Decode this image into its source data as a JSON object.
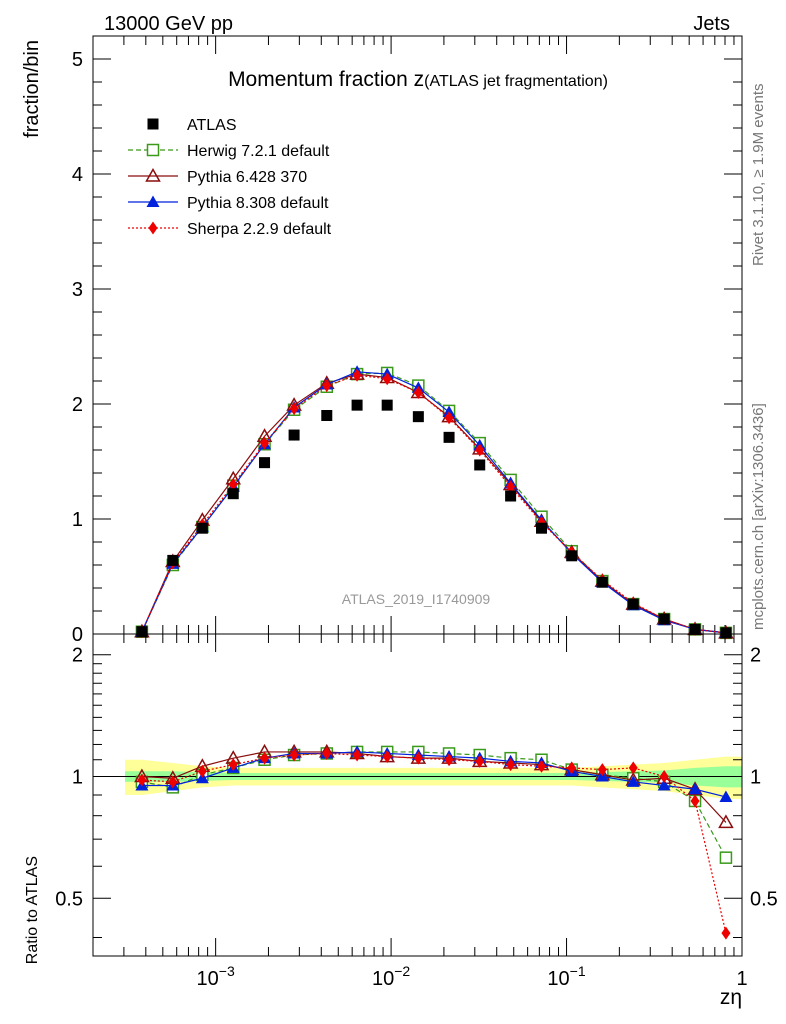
{
  "header": {
    "energy_label": "13000 GeV pp",
    "category_label": "Jets"
  },
  "side_labels": {
    "rivet": "Rivet 3.1.10, ≥ 1.9M events",
    "source": "mcplots.cern.ch [arXiv:1306.3436]"
  },
  "watermark": "ATLAS_2019_I1740909",
  "colors": {
    "atlas": "#000000",
    "herwig": "#3a9a1a",
    "pythia6": "#8b0d0d",
    "pythia8": "#0022dd",
    "sherpa": "#ee0000",
    "band_yellow": "#ffff99",
    "band_green": "#99ff99"
  },
  "chart_data": [
    {
      "type": "line",
      "title_main": "Momentum fraction ",
      "title_var": "z",
      "title_sub": "(ATLAS jet fragmentation)",
      "ylabel": "fraction/bin",
      "xscale": "log",
      "xlim": [
        0.0002,
        1
      ],
      "ylim": [
        0,
        5.2
      ],
      "yticks": [
        "0",
        "1",
        "2",
        "3",
        "4",
        "5"
      ],
      "x": [
        0.00038,
        0.00057,
        0.00084,
        0.00126,
        0.0019,
        0.0028,
        0.0043,
        0.0064,
        0.0095,
        0.0143,
        0.0214,
        0.032,
        0.048,
        0.072,
        0.107,
        0.16,
        0.24,
        0.36,
        0.54,
        0.81
      ],
      "legend": [
        "ATLAS",
        "Herwig 7.2.1 default",
        "Pythia 6.428 370",
        "Pythia 8.308 default",
        "Sherpa 2.2.9 default"
      ],
      "series": [
        {
          "name": "ATLAS",
          "key": "atlas",
          "marker": "square-filled",
          "line": "none",
          "values": [
            0.02,
            0.64,
            0.92,
            1.22,
            1.49,
            1.73,
            1.9,
            1.99,
            1.99,
            1.89,
            1.71,
            1.47,
            1.2,
            0.92,
            0.68,
            0.45,
            0.26,
            0.13,
            0.04,
            0.01
          ]
        },
        {
          "name": "Herwig 7.2.1 default",
          "key": "herwig",
          "marker": "square-open",
          "line": "dashed",
          "values": [
            0.02,
            0.6,
            0.93,
            1.29,
            1.65,
            1.95,
            2.15,
            2.26,
            2.27,
            2.16,
            1.94,
            1.66,
            1.34,
            1.02,
            0.72,
            0.46,
            0.26,
            0.13,
            0.04,
            0.01
          ]
        },
        {
          "name": "Pythia 6.428 370",
          "key": "pythia6",
          "marker": "triangle-open",
          "line": "solid",
          "values": [
            0.02,
            0.63,
            0.99,
            1.35,
            1.72,
            1.99,
            2.18,
            2.26,
            2.23,
            2.1,
            1.89,
            1.61,
            1.3,
            0.98,
            0.71,
            0.46,
            0.26,
            0.13,
            0.04,
            0.01
          ]
        },
        {
          "name": "Pythia 8.308 default",
          "key": "pythia8",
          "marker": "triangle-filled",
          "line": "solid",
          "values": [
            0.02,
            0.61,
            0.93,
            1.28,
            1.65,
            1.97,
            2.17,
            2.28,
            2.26,
            2.14,
            1.93,
            1.64,
            1.31,
            0.99,
            0.7,
            0.45,
            0.25,
            0.12,
            0.04,
            0.01
          ]
        },
        {
          "name": "Sherpa 2.2.9 default",
          "key": "sherpa",
          "marker": "diamond-filled",
          "line": "dotted",
          "values": [
            0.02,
            0.62,
            0.95,
            1.3,
            1.66,
            1.96,
            2.16,
            2.25,
            2.22,
            2.1,
            1.88,
            1.6,
            1.28,
            0.97,
            0.71,
            0.47,
            0.27,
            0.13,
            0.04,
            0.01
          ]
        }
      ]
    },
    {
      "type": "line",
      "ylabel": "Ratio to ATLAS",
      "xlabel": "zη",
      "xscale": "log",
      "xlim": [
        0.0002,
        1
      ],
      "ylim": [
        0.36,
        2.25
      ],
      "yticks": [
        "0.5",
        "1",
        "2"
      ],
      "xticks": [
        {
          "value": 0.001,
          "base": "10",
          "exp": "−3"
        },
        {
          "value": 0.01,
          "base": "10",
          "exp": "−2"
        },
        {
          "value": 0.1,
          "base": "10",
          "exp": "−1"
        },
        {
          "value": 1,
          "base": "1",
          "exp": ""
        }
      ],
      "x": [
        0.00038,
        0.00057,
        0.00084,
        0.00126,
        0.0019,
        0.0028,
        0.0043,
        0.0064,
        0.0095,
        0.0143,
        0.0214,
        0.032,
        0.048,
        0.072,
        0.107,
        0.16,
        0.24,
        0.36,
        0.54,
        0.81
      ],
      "band_yellow_halfwidth": [
        0.1,
        0.08,
        0.06,
        0.05,
        0.05,
        0.05,
        0.05,
        0.05,
        0.05,
        0.05,
        0.05,
        0.05,
        0.05,
        0.05,
        0.05,
        0.06,
        0.07,
        0.08,
        0.1,
        0.12
      ],
      "band_green_halfwidth": [
        0.03,
        0.03,
        0.025,
        0.02,
        0.02,
        0.02,
        0.02,
        0.02,
        0.02,
        0.02,
        0.02,
        0.02,
        0.02,
        0.02,
        0.02,
        0.025,
        0.03,
        0.035,
        0.05,
        0.06
      ],
      "series": [
        {
          "name": "Herwig 7.2.1 default",
          "key": "herwig",
          "marker": "square-open",
          "line": "dashed",
          "values": [
            0.97,
            0.94,
            1.01,
            1.05,
            1.1,
            1.13,
            1.14,
            1.15,
            1.15,
            1.15,
            1.14,
            1.13,
            1.11,
            1.1,
            1.04,
            1.01,
            0.99,
            0.97,
            0.87,
            0.63
          ]
        },
        {
          "name": "Pythia 6.428 370",
          "key": "pythia6",
          "marker": "triangle-open",
          "line": "solid",
          "values": [
            1.0,
            0.99,
            1.06,
            1.11,
            1.15,
            1.15,
            1.15,
            1.14,
            1.12,
            1.11,
            1.11,
            1.09,
            1.08,
            1.07,
            1.04,
            1.01,
            0.98,
            0.99,
            0.93,
            0.77
          ]
        },
        {
          "name": "Pythia 8.308 default",
          "key": "pythia8",
          "marker": "triangle-filled",
          "line": "solid",
          "values": [
            0.95,
            0.95,
            0.99,
            1.05,
            1.11,
            1.14,
            1.14,
            1.15,
            1.14,
            1.13,
            1.12,
            1.11,
            1.09,
            1.08,
            1.03,
            1.0,
            0.97,
            0.95,
            0.93,
            0.89
          ]
        },
        {
          "name": "Sherpa 2.2.9 default",
          "key": "sherpa",
          "marker": "diamond-filled",
          "line": "dotted",
          "values": [
            0.98,
            0.97,
            1.03,
            1.07,
            1.11,
            1.13,
            1.14,
            1.13,
            1.12,
            1.11,
            1.1,
            1.09,
            1.07,
            1.06,
            1.05,
            1.04,
            1.05,
            1.0,
            0.87,
            0.41
          ]
        }
      ]
    }
  ]
}
